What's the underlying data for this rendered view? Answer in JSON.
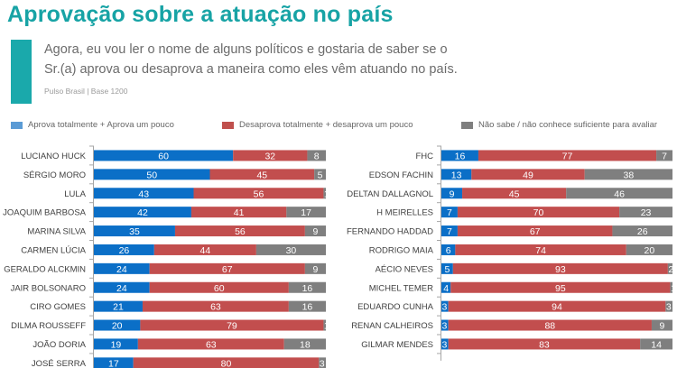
{
  "header": {
    "title": "Aprovação sobre a atuação no país",
    "question_line1": "Agora, eu vou ler o nome de alguns políticos e gostaria de saber se o",
    "question_line2": "Sr.(a) aprova ou desaprova a maneira como eles vêm atuando no país.",
    "source": "Pulso Brasil | Base 1200"
  },
  "legend": [
    {
      "label": "Aprova totalmente + Aprova um pouco",
      "color": "#0b6fc7"
    },
    {
      "label": "Desaprova totalmente + desaprova um pouco",
      "color": "#c24e4e"
    },
    {
      "label": "Não sabe / não conhece suficiente para avaliar",
      "color": "#7f7f7f"
    }
  ],
  "chart_data": [
    {
      "type": "bar",
      "orientation": "horizontal",
      "stacked": true,
      "title": "",
      "xlim": [
        0,
        100
      ],
      "categories": [
        "LUCIANO HUCK",
        "SÉRGIO MORO",
        "LULA",
        "JOAQUIM BARBOSA",
        "MARINA SILVA",
        "CARMEN LÚCIA",
        "GERALDO ALCKMIN",
        "JAIR BOLSONARO",
        "CIRO GOMES",
        "DILMA ROUSSEFF",
        "JOÃO DORIA",
        "JOSÉ SERRA"
      ],
      "series": [
        {
          "name": "Aprova totalmente + Aprova um pouco",
          "color": "#0b6fc7",
          "values": [
            60,
            50,
            43,
            42,
            35,
            26,
            24,
            24,
            21,
            20,
            19,
            17
          ]
        },
        {
          "name": "Desaprova totalmente + desaprova um pouco",
          "color": "#c24e4e",
          "values": [
            32,
            45,
            56,
            41,
            56,
            44,
            67,
            60,
            63,
            79,
            63,
            80
          ]
        },
        {
          "name": "Não sabe / não conhece suficiente para avaliar",
          "color": "#7f7f7f",
          "values": [
            8,
            5,
            1,
            17,
            9,
            30,
            9,
            16,
            16,
            1,
            18,
            3
          ]
        }
      ]
    },
    {
      "type": "bar",
      "orientation": "horizontal",
      "stacked": true,
      "title": "",
      "xlim": [
        0,
        100
      ],
      "categories": [
        "FHC",
        "EDSON FACHIN",
        "DELTAN DALLAGNOL",
        "H MEIRELLES",
        "FERNANDO HADDAD",
        "RODRIGO MAIA",
        "AÉCIO NEVES",
        "MICHEL TEMER",
        "EDUARDO CUNHA",
        "RENAN CALHEIROS",
        "GILMAR MENDES"
      ],
      "series": [
        {
          "name": "Aprova totalmente + Aprova um pouco",
          "color": "#0b6fc7",
          "values": [
            16,
            13,
            9,
            7,
            7,
            6,
            5,
            4,
            3,
            3,
            3
          ]
        },
        {
          "name": "Desaprova totalmente + desaprova um pouco",
          "color": "#c24e4e",
          "values": [
            77,
            49,
            45,
            70,
            67,
            74,
            93,
            95,
            94,
            88,
            83
          ]
        },
        {
          "name": "Não sabe / não conhece suficiente para avaliar",
          "color": "#7f7f7f",
          "values": [
            7,
            38,
            46,
            23,
            26,
            20,
            2,
            1,
            3,
            9,
            14
          ]
        }
      ]
    }
  ]
}
